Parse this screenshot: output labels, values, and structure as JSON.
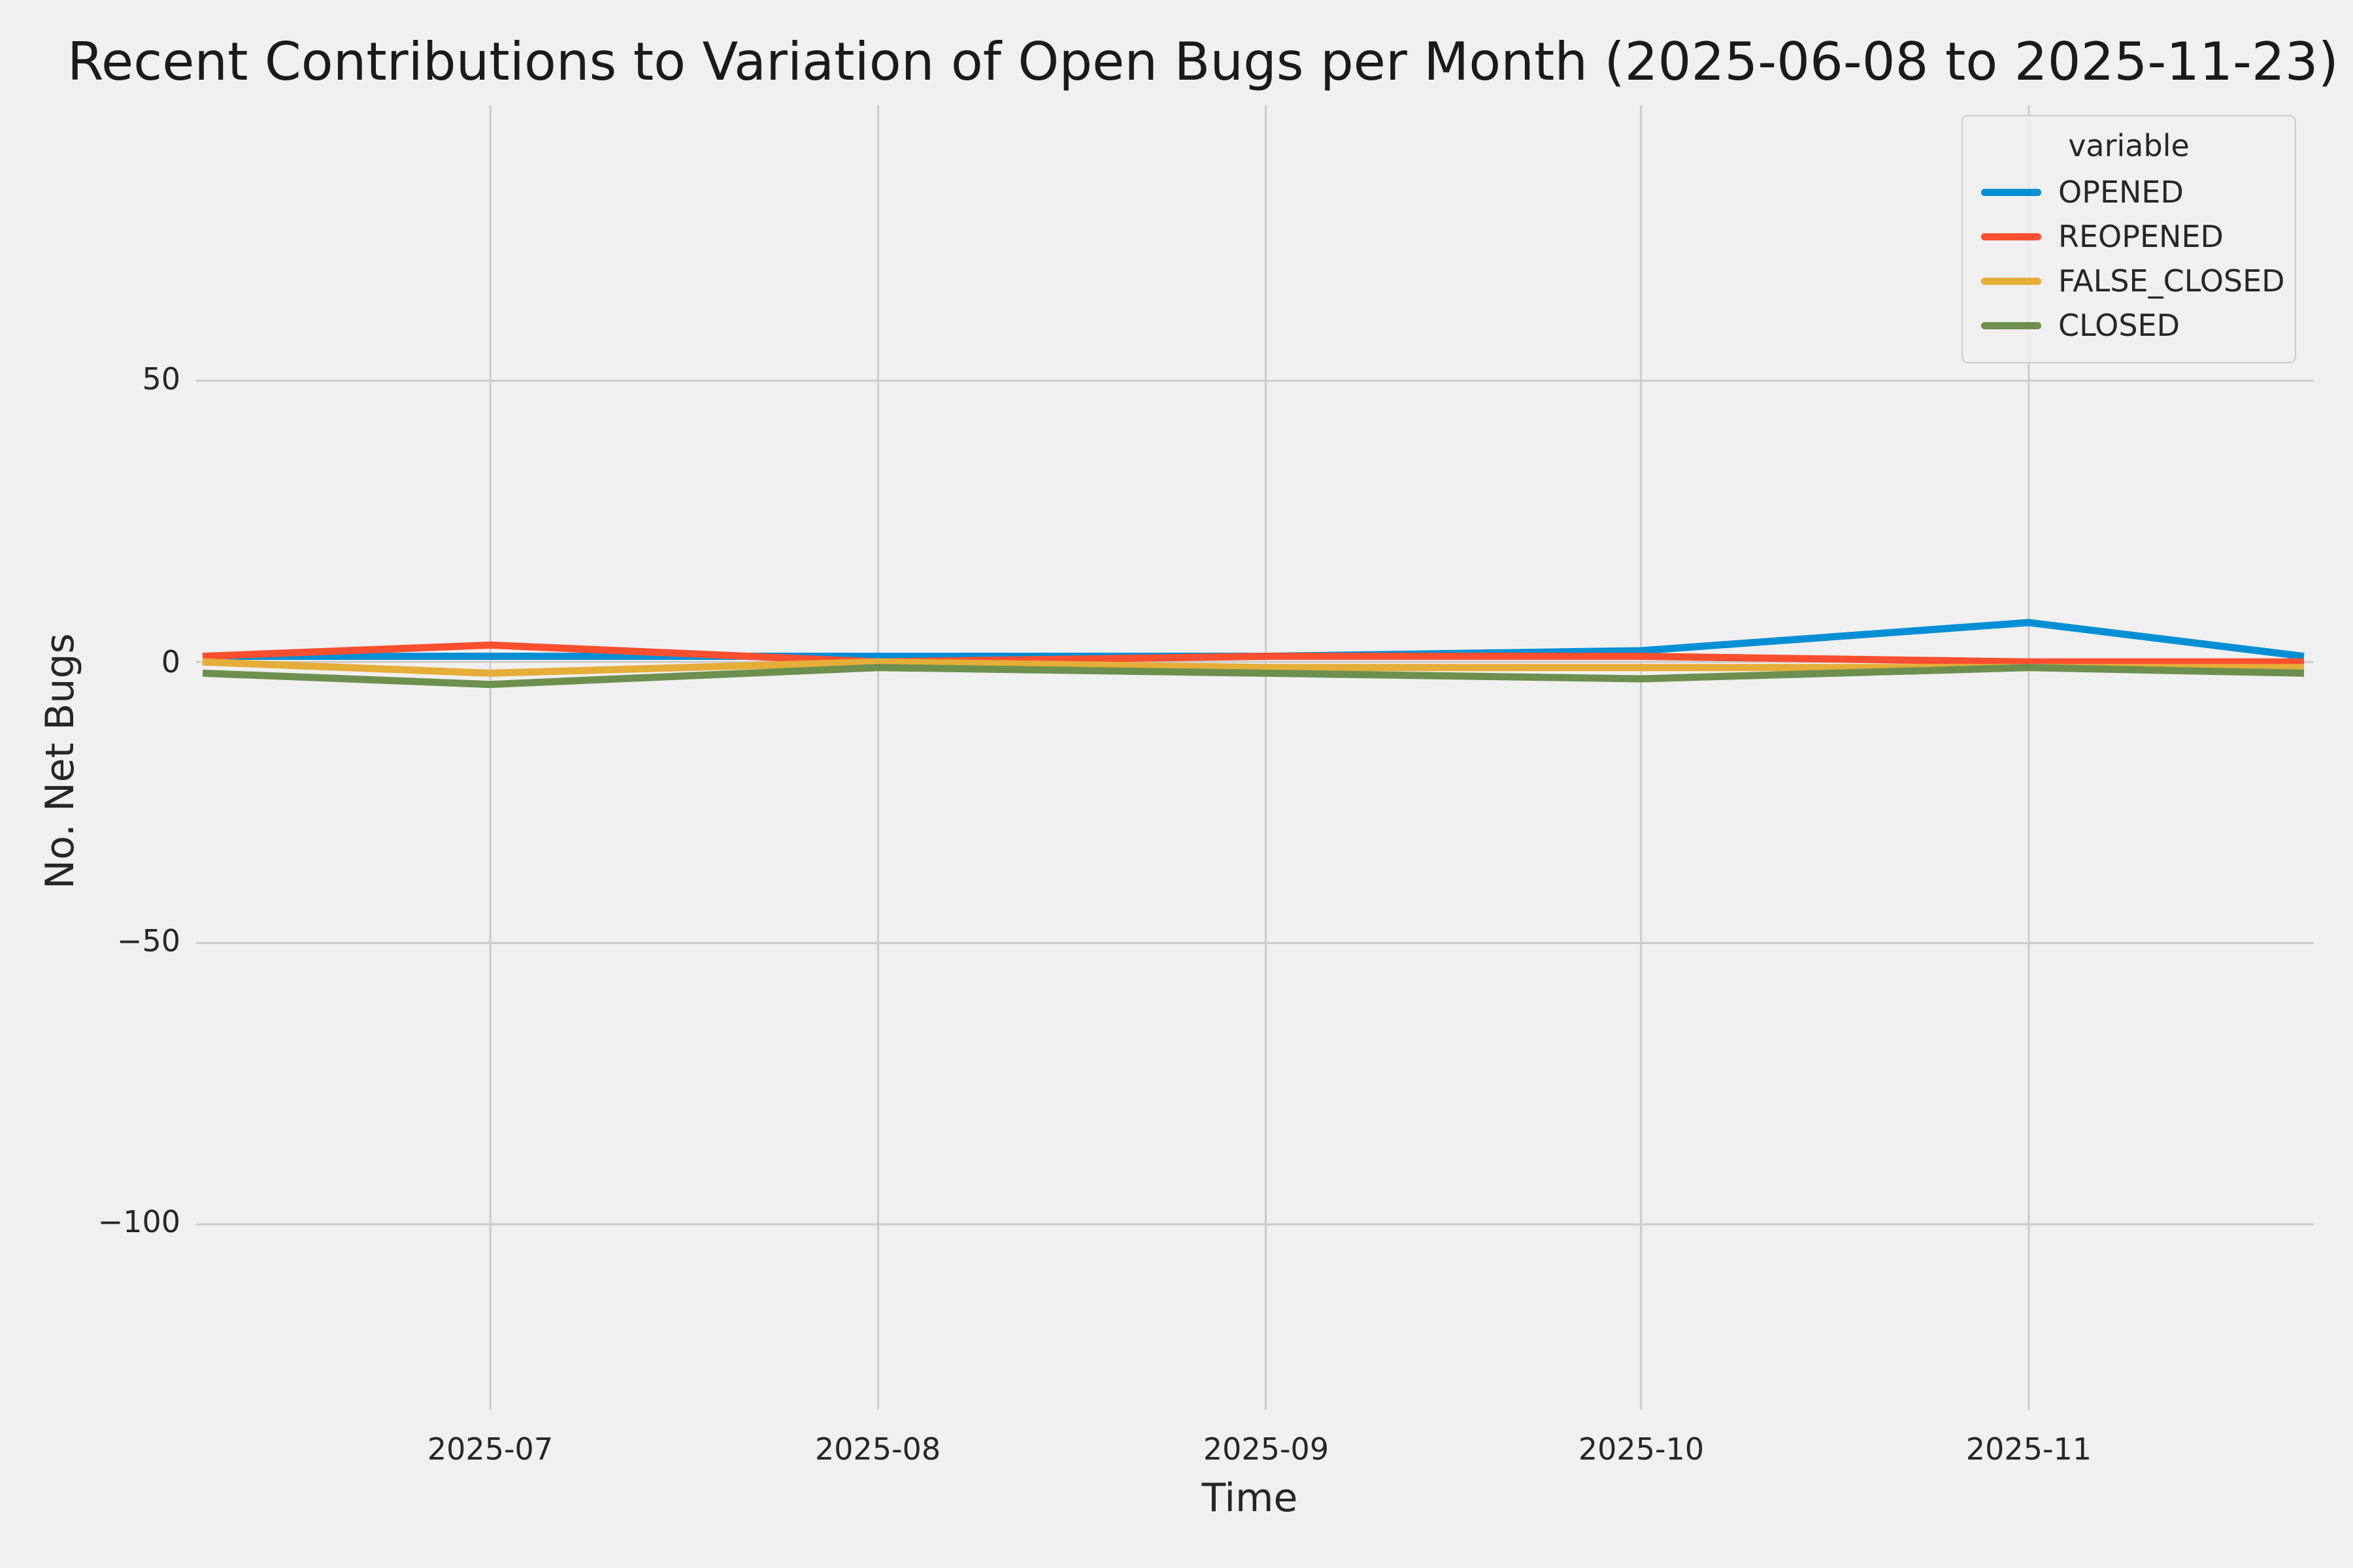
{
  "title": "Recent Contributions to Variation of Open Bugs per Month (2025-06-08 to 2025-11-23)",
  "colors": {
    "background": "#f0f0f0",
    "grid": "#cbcbcb",
    "text": "#262626"
  },
  "chart_data": {
    "type": "line",
    "title": "Recent Contributions to Variation of Open Bugs per Month (2025-06-08 to 2025-11-23)",
    "xlabel": "Time",
    "ylabel": "No. Net Bugs",
    "grid": true,
    "legend": {
      "title": "variable",
      "position": "upper right"
    },
    "x_dates": [
      "2025-06-08",
      "2025-07-01",
      "2025-08-01",
      "2025-09-01",
      "2025-10-01",
      "2025-11-01",
      "2025-11-23"
    ],
    "x_days": [
      0,
      23,
      54,
      85,
      115,
      146,
      168
    ],
    "xlim_days": [
      0,
      168
    ],
    "ylim": [
      -133,
      99
    ],
    "series": [
      {
        "name": "OPENED",
        "color": "#008fd5",
        "values": [
          1,
          1,
          1,
          1,
          2,
          7,
          1
        ]
      },
      {
        "name": "REOPENED",
        "color": "#fc4f30",
        "values": [
          1,
          3,
          0,
          1,
          1,
          0,
          0
        ]
      },
      {
        "name": "FALSE_CLOSED",
        "color": "#e5ae38",
        "values": [
          0,
          -2,
          0,
          -1,
          -1,
          -1,
          -1
        ]
      },
      {
        "name": "CLOSED",
        "color": "#6d904f",
        "values": [
          -2,
          -4,
          -1,
          -2,
          -3,
          -1,
          -2
        ]
      }
    ],
    "x_ticks": {
      "labels": [
        "2025-07",
        "2025-08",
        "2025-09",
        "2025-10",
        "2025-11"
      ],
      "days": [
        23,
        54,
        85,
        115,
        146
      ]
    },
    "y_ticks": {
      "labels": [
        "50",
        "0",
        "−50",
        "−100"
      ],
      "values": [
        50,
        0,
        -50,
        -100
      ]
    }
  }
}
